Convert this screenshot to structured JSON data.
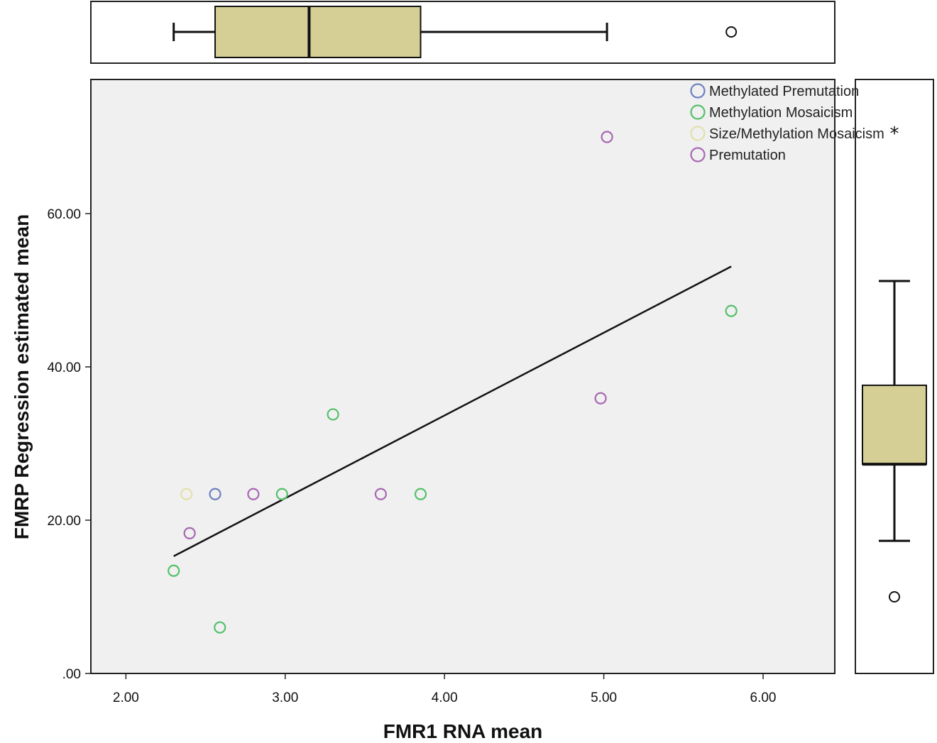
{
  "chart_data": {
    "type": "scatter",
    "xlabel": "FMR1 RNA mean",
    "ylabel": "FMRP Regression estimated mean",
    "xlim": [
      1.78,
      6.45
    ],
    "ylim": [
      0,
      77.5
    ],
    "x_ticks": [
      "2.00",
      "3.00",
      "4.00",
      "5.00",
      "6.00"
    ],
    "x_tick_values": [
      2,
      3,
      4,
      5,
      6
    ],
    "y_ticks": [
      ".00",
      "20.00",
      "40.00",
      "60.00"
    ],
    "y_tick_values": [
      0,
      20,
      40,
      60
    ],
    "grid": false,
    "plot_background": "#f0f0f0",
    "legend_position": "top-right",
    "series": [
      {
        "name": "Methylated Premutation",
        "color": "#6e7fc0",
        "points": [
          {
            "x": 2.56,
            "y": 23.4
          }
        ]
      },
      {
        "name": "Methylation Mosaicism",
        "color": "#55c06a",
        "points": [
          {
            "x": 2.3,
            "y": 13.4
          },
          {
            "x": 2.59,
            "y": 6.0
          },
          {
            "x": 2.98,
            "y": 23.4
          },
          {
            "x": 3.3,
            "y": 33.8
          },
          {
            "x": 3.85,
            "y": 23.4
          },
          {
            "x": 5.8,
            "y": 47.3
          }
        ]
      },
      {
        "name": "Size/Methylation Mosaicism",
        "color": "#e4e0ac",
        "points": [
          {
            "x": 2.38,
            "y": 23.4
          }
        ]
      },
      {
        "name": "Premutation",
        "color": "#a868b3",
        "points": [
          {
            "x": 2.4,
            "y": 18.3
          },
          {
            "x": 2.8,
            "y": 23.4
          },
          {
            "x": 3.6,
            "y": 23.4
          },
          {
            "x": 4.98,
            "y": 35.9
          },
          {
            "x": 5.02,
            "y": 70.0
          }
        ]
      }
    ],
    "fit_line": {
      "x1": 2.3,
      "y1": 15.3,
      "x2": 5.8,
      "y2": 53.1,
      "color": "#111111"
    },
    "marginal_x_boxplot": {
      "whisker_low": 2.3,
      "q1": 2.56,
      "median": 3.15,
      "q3": 3.85,
      "whisker_high": 5.02,
      "outliers": [
        5.8
      ],
      "fill": "#d5cf95"
    },
    "marginal_y_boxplot": {
      "whisker_low": 17.3,
      "q1": 27.3,
      "median": 27.3,
      "q3": 37.6,
      "whisker_high": 51.2,
      "outliers": [
        10.0
      ],
      "extremes": [
        70.0
      ],
      "fill": "#d5cf95"
    }
  }
}
